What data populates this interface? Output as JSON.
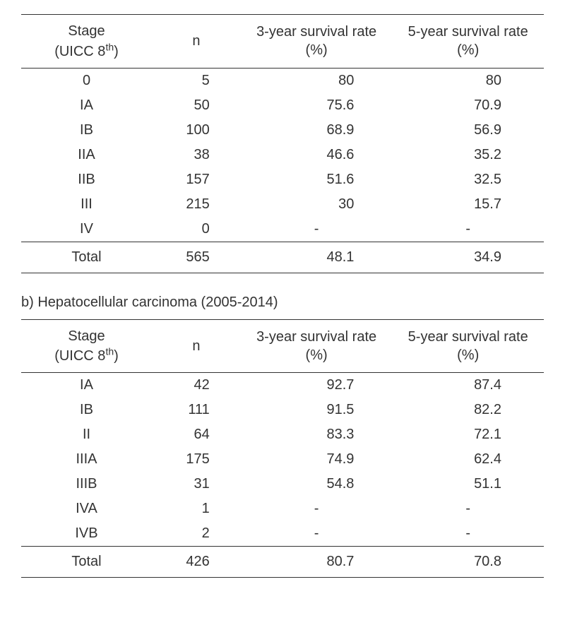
{
  "tables": [
    {
      "section_title": "",
      "columns": {
        "stage": "Stage\n(UICC 8",
        "stage_sup": "th",
        "stage_close": ")",
        "n": "n",
        "rate3": "3-year survival rate (%)",
        "rate5": "5-year survival rate (%)"
      },
      "rows": [
        {
          "stage": "0",
          "n": "5",
          "rate3": "80",
          "rate5": "80"
        },
        {
          "stage": "IA",
          "n": "50",
          "rate3": "75.6",
          "rate5": "70.9"
        },
        {
          "stage": "IB",
          "n": "100",
          "rate3": "68.9",
          "rate5": "56.9"
        },
        {
          "stage": "IIA",
          "n": "38",
          "rate3": "46.6",
          "rate5": "35.2"
        },
        {
          "stage": "IIB",
          "n": "157",
          "rate3": "51.6",
          "rate5": "32.5"
        },
        {
          "stage": "III",
          "n": "215",
          "rate3": "30",
          "rate5": "15.7"
        },
        {
          "stage": "IV",
          "n": "0",
          "rate3": "-",
          "rate5": "-"
        }
      ],
      "total": {
        "stage": "Total",
        "n": "565",
        "rate3": "48.1",
        "rate5": "34.9"
      }
    },
    {
      "section_title": "b) Hepatocellular carcinoma (2005-2014)",
      "columns": {
        "stage": "Stage\n(UICC 8",
        "stage_sup": "th",
        "stage_close": ")",
        "n": "n",
        "rate3": "3-year survival rate (%)",
        "rate5": "5-year survival rate (%)"
      },
      "rows": [
        {
          "stage": "IA",
          "n": "42",
          "rate3": "92.7",
          "rate5": "87.4"
        },
        {
          "stage": "IB",
          "n": "111",
          "rate3": "91.5",
          "rate5": "82.2"
        },
        {
          "stage": "II",
          "n": "64",
          "rate3": "83.3",
          "rate5": "72.1"
        },
        {
          "stage": "IIIA",
          "n": "175",
          "rate3": "74.9",
          "rate5": "62.4"
        },
        {
          "stage": "IIIB",
          "n": "31",
          "rate3": "54.8",
          "rate5": "51.1"
        },
        {
          "stage": "IVA",
          "n": "1",
          "rate3": "-",
          "rate5": "-"
        },
        {
          "stage": "IVB",
          "n": "2",
          "rate3": "-",
          "rate5": "-"
        }
      ],
      "total": {
        "stage": "Total",
        "n": "426",
        "rate3": "80.7",
        "rate5": "70.8"
      }
    }
  ],
  "styling": {
    "background_color": "#ffffff",
    "text_color": "#333333",
    "border_color": "#333333",
    "font_family": "Arial, Helvetica, sans-serif",
    "body_font_size": 20,
    "header_font_size": 20,
    "section_title_font_size": 20
  }
}
